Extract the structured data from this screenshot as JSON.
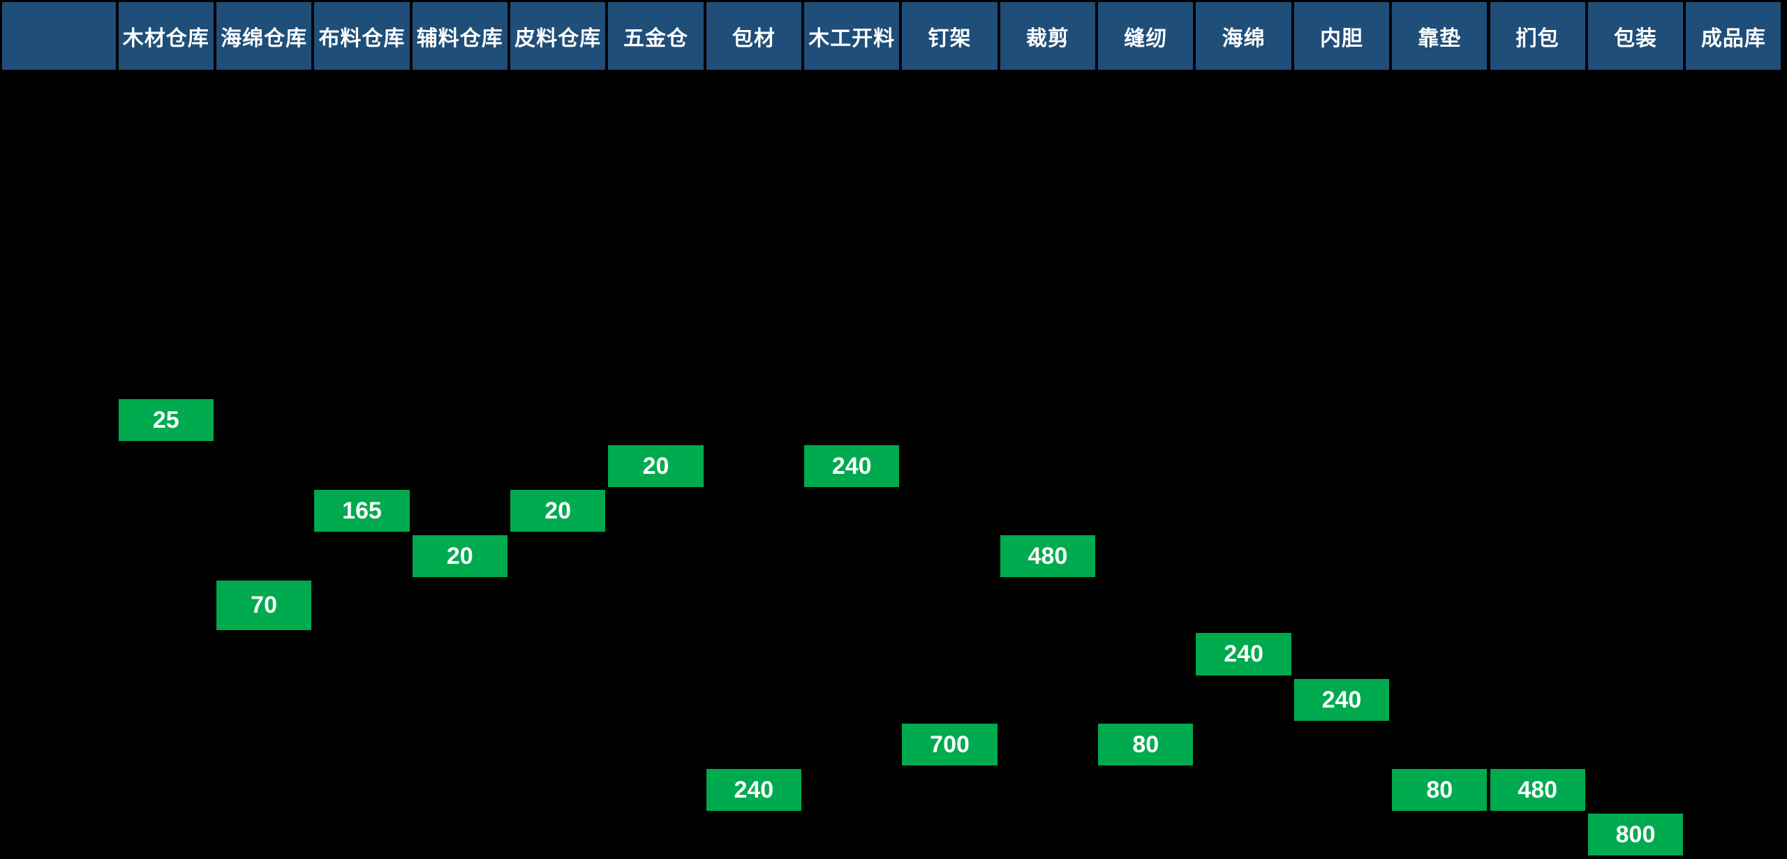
{
  "colors": {
    "background": "#000000",
    "header_bg": "#1F4E79",
    "header_text": "#FFFFFF",
    "cell_bg": "#00AA4E",
    "cell_text": "#FFFFFF"
  },
  "chart_data": {
    "type": "table",
    "title": "",
    "description": "Production process flow board: quantity of stock shown as a green cell under each warehouse / process station column, cascading by process order.",
    "columns": [
      "",
      "木材仓库",
      "海绵仓库",
      "布料仓库",
      "辅料仓库",
      "皮料仓库",
      "五金仓",
      "包材",
      "木工开料",
      "钉架",
      "裁剪",
      "缝纫",
      "海绵",
      "内胆",
      "靠垫",
      "扪包",
      "包装",
      "成品库"
    ],
    "row_count": 10,
    "cells": [
      {
        "station": "木材仓库",
        "col": 1,
        "row": 0,
        "value": 25
      },
      {
        "station": "五金仓",
        "col": 6,
        "row": 1,
        "value": 20
      },
      {
        "station": "木工开料",
        "col": 8,
        "row": 1,
        "value": 240
      },
      {
        "station": "布料仓库",
        "col": 3,
        "row": 2,
        "value": 165
      },
      {
        "station": "皮料仓库",
        "col": 5,
        "row": 2,
        "value": 20
      },
      {
        "station": "辅料仓库",
        "col": 4,
        "row": 3,
        "value": 20
      },
      {
        "station": "裁剪",
        "col": 10,
        "row": 3,
        "value": 480
      },
      {
        "station": "海绵仓库",
        "col": 2,
        "row": 4,
        "value": 70
      },
      {
        "station": "海绵",
        "col": 12,
        "row": 5,
        "value": 240
      },
      {
        "station": "内胆",
        "col": 13,
        "row": 6,
        "value": 240
      },
      {
        "station": "钉架",
        "col": 9,
        "row": 7,
        "value": 700
      },
      {
        "station": "缝纫",
        "col": 11,
        "row": 7,
        "value": 80
      },
      {
        "station": "包材",
        "col": 7,
        "row": 8,
        "value": 240
      },
      {
        "station": "靠垫",
        "col": 14,
        "row": 8,
        "value": 80
      },
      {
        "station": "扪包",
        "col": 15,
        "row": 8,
        "value": 480
      },
      {
        "station": "包装",
        "col": 16,
        "row": 9,
        "value": 800
      }
    ]
  }
}
